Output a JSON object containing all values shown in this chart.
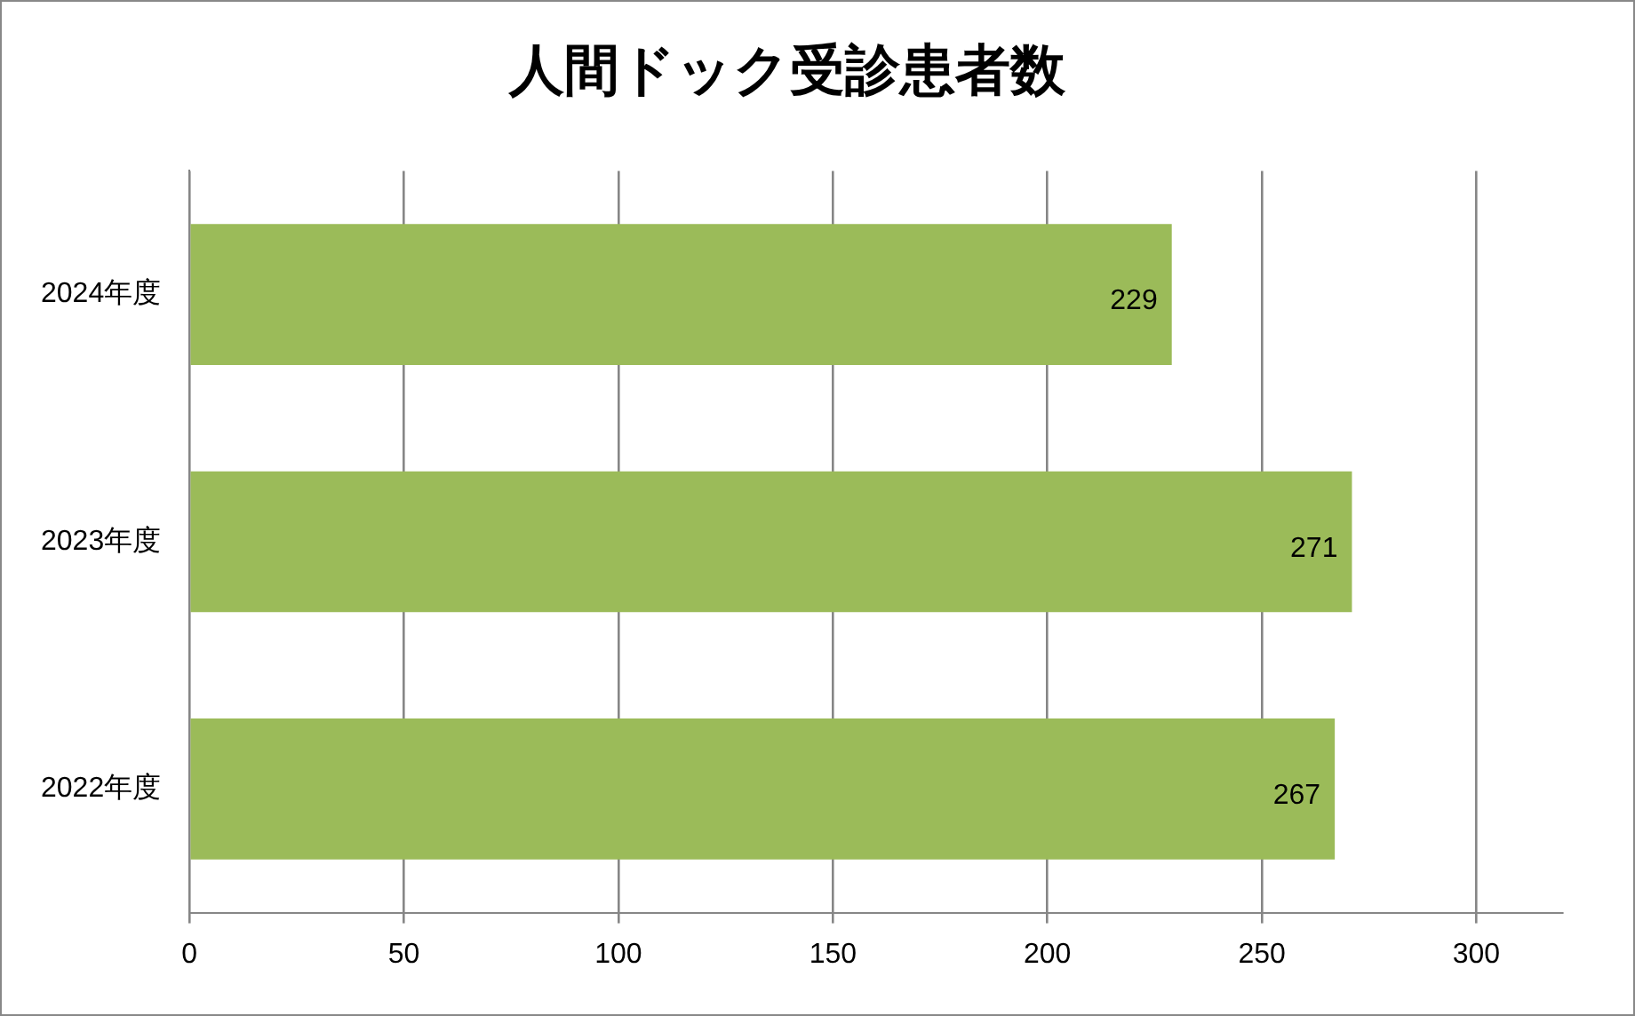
{
  "chart_data": {
    "type": "bar",
    "title": "人間ドック受診患者数",
    "orientation": "horizontal",
    "categories": [
      "2024年度",
      "2023年度",
      "2022年度"
    ],
    "values": [
      229,
      271,
      267
    ],
    "color": "#9bbb59",
    "xlim": [
      0,
      320
    ],
    "xticks": [
      0,
      50,
      100,
      150,
      200,
      250,
      300
    ],
    "grid": "x",
    "data_labels": true
  }
}
